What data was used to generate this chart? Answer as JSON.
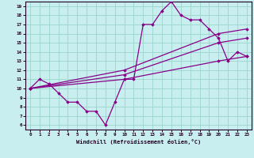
{
  "xlabel": "Windchill (Refroidissement éolien,°C)",
  "background_color": "#c8eef0",
  "grid_color": "#a0d8d0",
  "line_color": "#880088",
  "xlim": [
    -0.5,
    23.5
  ],
  "ylim": [
    5.5,
    19.5
  ],
  "xticks": [
    0,
    1,
    2,
    3,
    4,
    5,
    6,
    7,
    8,
    9,
    10,
    11,
    12,
    13,
    14,
    15,
    16,
    17,
    18,
    19,
    20,
    21,
    22,
    23
  ],
  "yticks": [
    6,
    7,
    8,
    9,
    10,
    11,
    12,
    13,
    14,
    15,
    16,
    17,
    18,
    19
  ],
  "series1_x": [
    0,
    1,
    2,
    3,
    4,
    5,
    6,
    7,
    8,
    9,
    10,
    11,
    12,
    13,
    14,
    15,
    16,
    17,
    18,
    19,
    20,
    21,
    22,
    23
  ],
  "series1_y": [
    10,
    11,
    10.5,
    9.5,
    8.5,
    8.5,
    7.5,
    7.5,
    6,
    8.5,
    11,
    11,
    17,
    17,
    18.5,
    19.5,
    18,
    17.5,
    17.5,
    16.5,
    15.5,
    13,
    14,
    13.5
  ],
  "series2_x": [
    0,
    10,
    20,
    23
  ],
  "series2_y": [
    10,
    12,
    16,
    16.5
  ],
  "series3_x": [
    0,
    10,
    20,
    23
  ],
  "series3_y": [
    10,
    11.5,
    15,
    15.5
  ],
  "series4_x": [
    0,
    10,
    20,
    23
  ],
  "series4_y": [
    10,
    11,
    13,
    13.5
  ],
  "xlabel_color": "#220022",
  "spine_color": "#220022",
  "tick_color": "#220022"
}
